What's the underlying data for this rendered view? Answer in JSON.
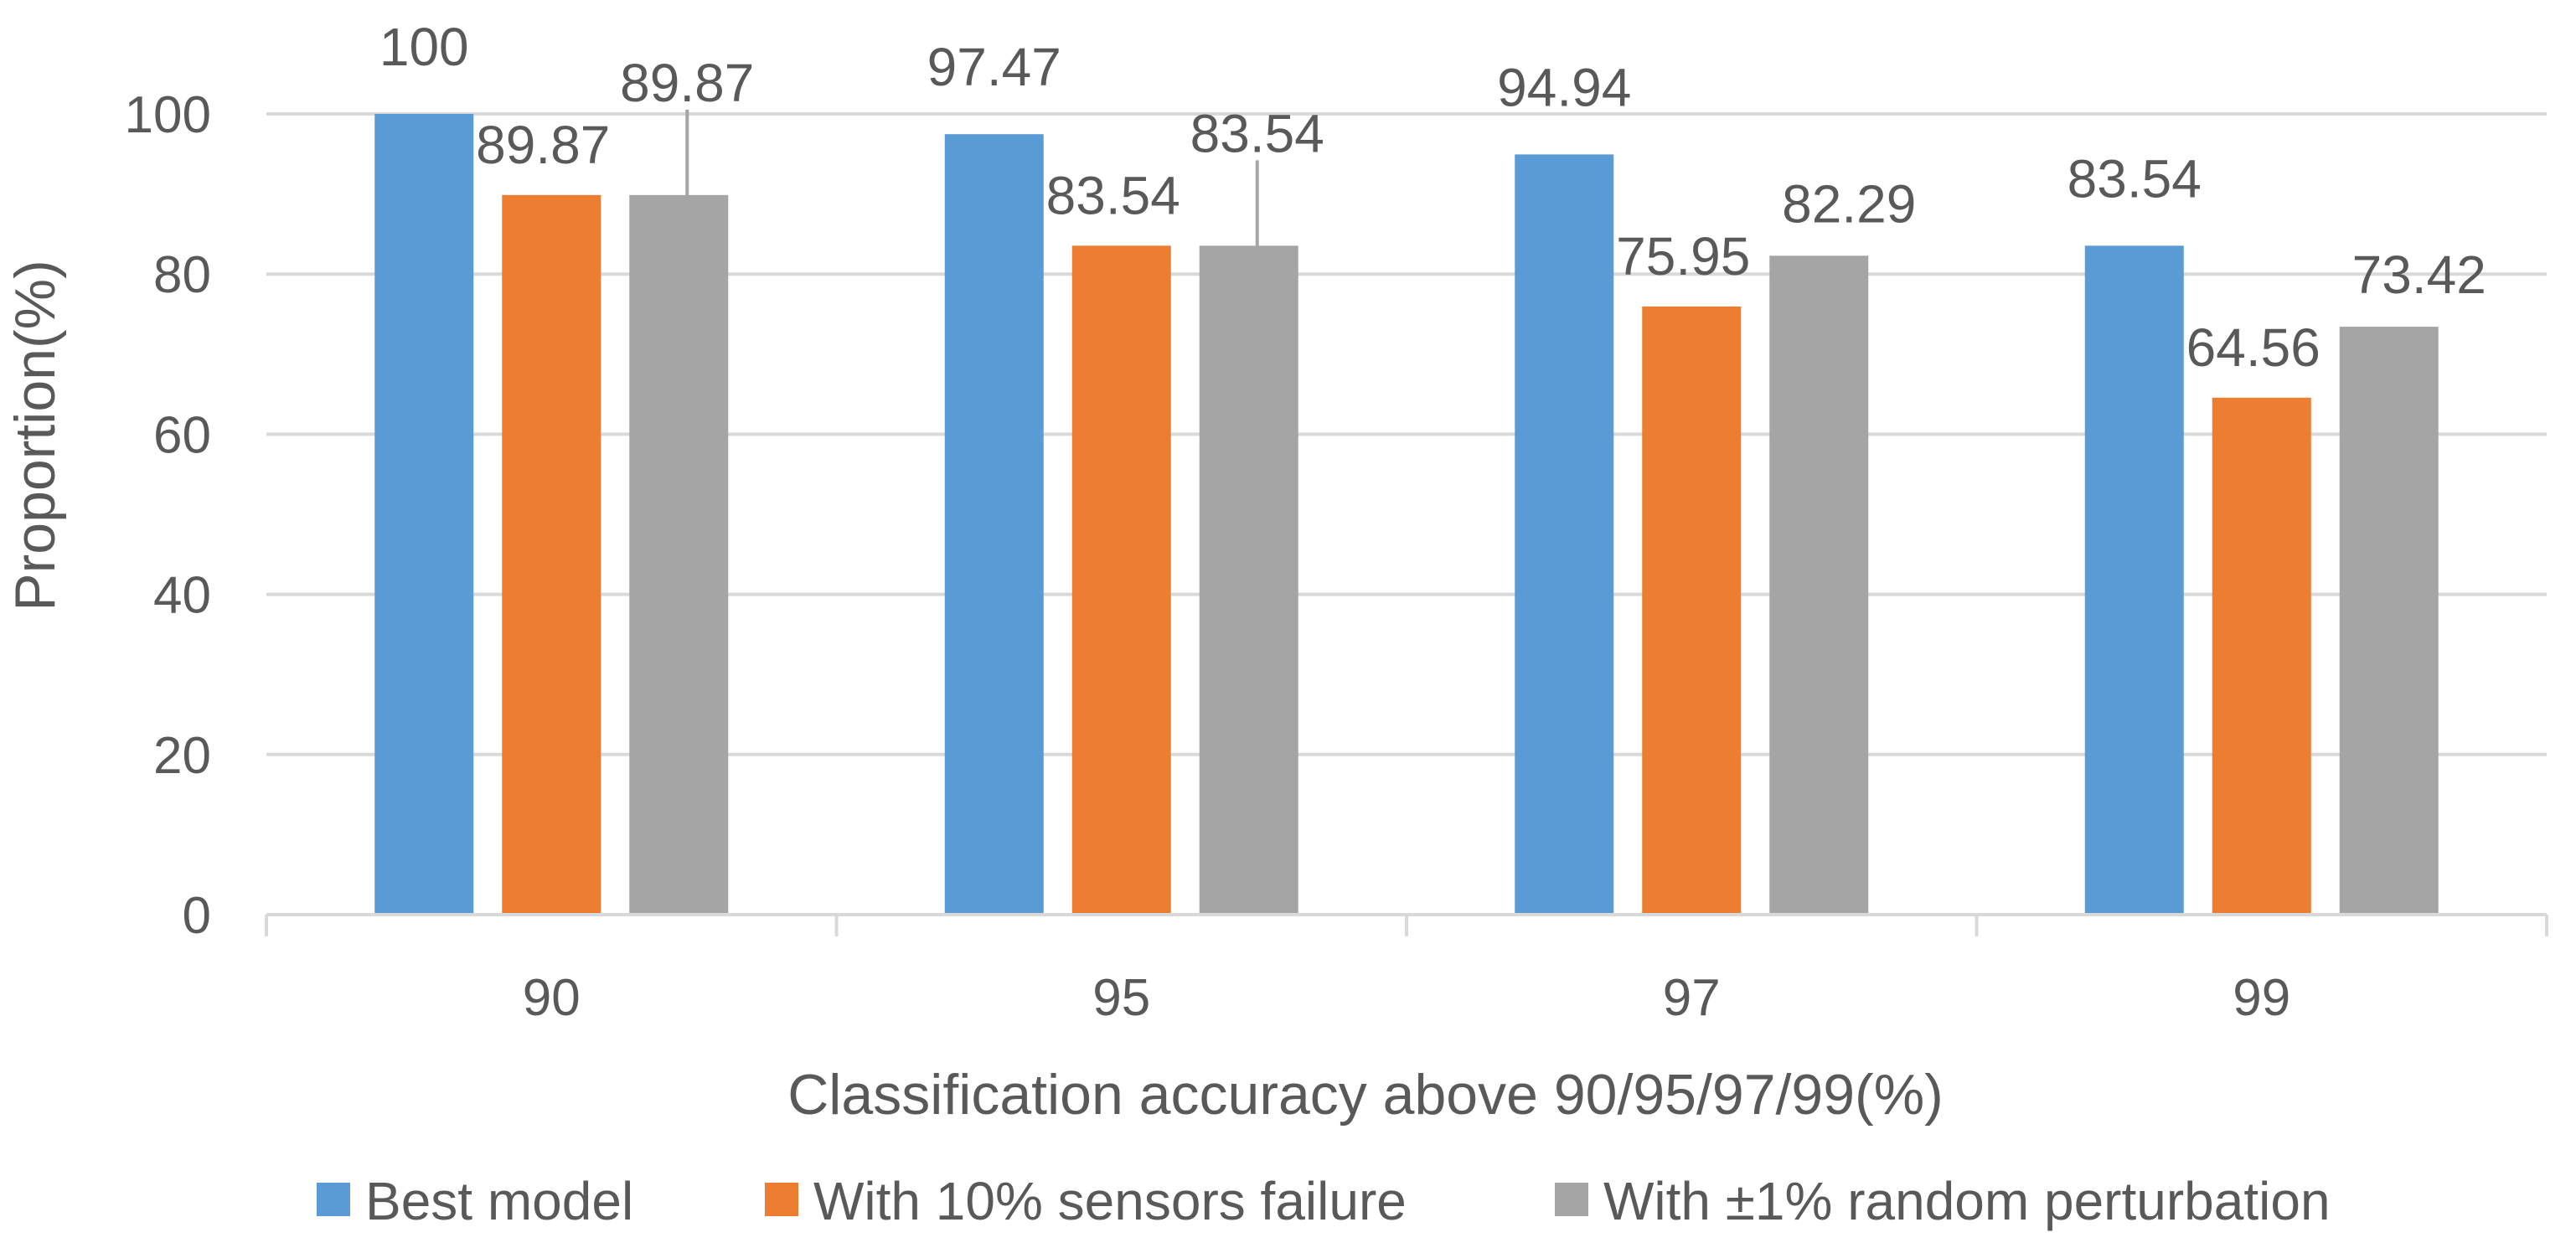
{
  "chart_data": {
    "type": "bar",
    "title": "",
    "xlabel": "Classification accuracy above 90/95/97/99(%)",
    "ylabel": "Proportion(%)",
    "categories": [
      "90",
      "95",
      "97",
      "99"
    ],
    "ylim": [
      0,
      100
    ],
    "yticks": [
      "0",
      "20",
      "40",
      "60",
      "80",
      "100"
    ],
    "grid": true,
    "legend_position": "bottom",
    "series": [
      {
        "name": "Best model",
        "color": "#5B9BD5",
        "values": [
          100,
          97.47,
          94.94,
          83.54
        ],
        "labels": [
          "100",
          "97.47",
          "94.94",
          "83.54"
        ]
      },
      {
        "name": "With 10% sensors failure",
        "color": "#ED7D31",
        "values": [
          89.87,
          83.54,
          75.95,
          64.56
        ],
        "labels": [
          "89.87",
          "83.54",
          "75.95",
          "64.56"
        ]
      },
      {
        "name": "With ±1% random perturbation",
        "color": "#A5A5A5",
        "values": [
          89.87,
          83.54,
          82.29,
          73.42
        ],
        "labels": [
          "89.87",
          "83.54",
          "82.29",
          "73.42"
        ]
      }
    ]
  }
}
